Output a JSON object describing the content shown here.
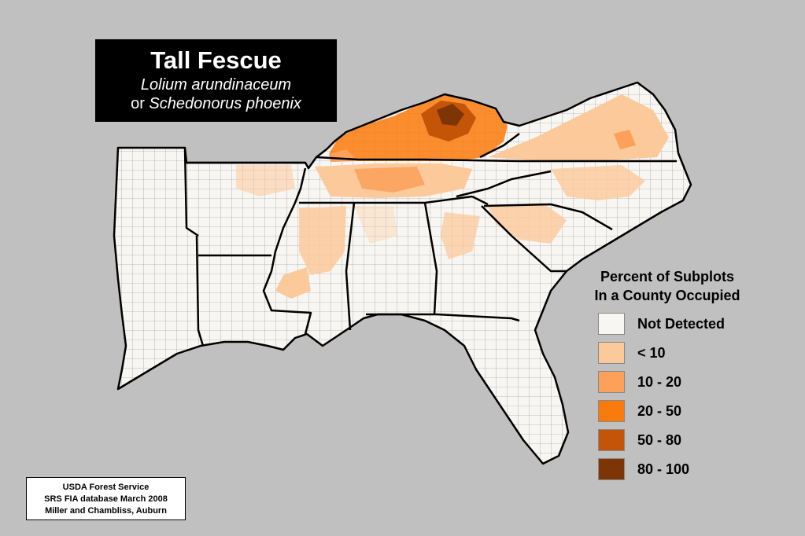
{
  "title": {
    "common_name": "Tall Fescue",
    "scientific_name": "Lolium arundinaceum",
    "alt_prefix": "or ",
    "alt_scientific_name": "Schedonorus phoenix"
  },
  "legend": {
    "title_line1": "Percent of Subplots",
    "title_line2": "In a County Occupied",
    "classes": [
      {
        "label": "Not Detected",
        "color": "#f8f6f2"
      },
      {
        "label": "< 10",
        "color": "#fcc99b"
      },
      {
        "label": "10 - 20",
        "color": "#fca05a"
      },
      {
        "label": "20 - 50",
        "color": "#fb7a0c"
      },
      {
        "label": "50 - 80",
        "color": "#c45408"
      },
      {
        "label": "80 - 100",
        "color": "#7e3505"
      }
    ]
  },
  "source": {
    "line1": "USDA Forest Service",
    "line2": "SRS FIA database March 2008",
    "line3": "Miller and Chambliss, Auburn"
  },
  "colors": {
    "background": "#c0c0c0",
    "state_border": "#000000",
    "county_border": "#777777"
  }
}
